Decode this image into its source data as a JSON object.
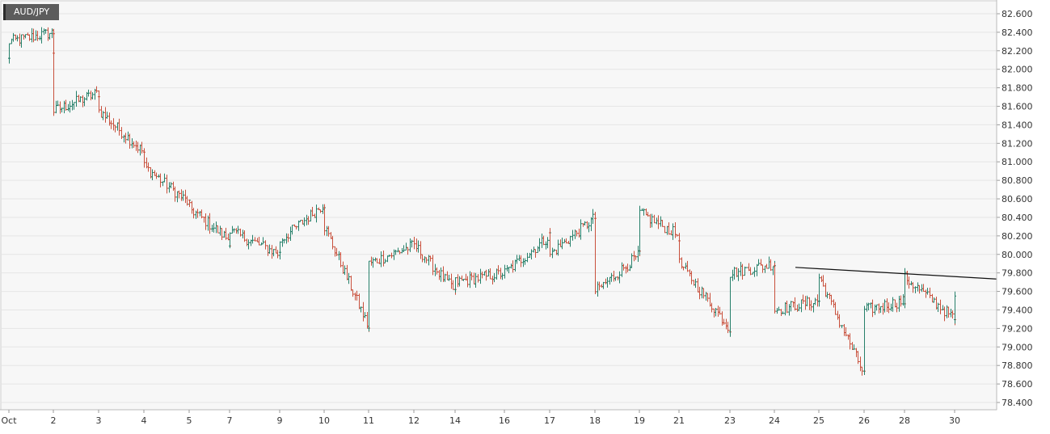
{
  "symbol": "AUD/JPY",
  "colors": {
    "up": "#26806a",
    "down": "#c8503c",
    "grid": "#e6e6e6",
    "plot_bg": "#f7f7f7",
    "axis_text": "#333333",
    "trendline": "#111111",
    "badge_bg": "#5c5c5c"
  },
  "chart_data": {
    "type": "candlestick",
    "title": "",
    "xlabel": "",
    "ylabel": "",
    "ylim": [
      78.3,
      82.7
    ],
    "y_ticks": [
      "82.600",
      "82.400",
      "82.200",
      "82.000",
      "81.800",
      "81.600",
      "81.400",
      "81.200",
      "81.000",
      "80.800",
      "80.600",
      "80.400",
      "80.200",
      "80.000",
      "79.800",
      "79.600",
      "79.400",
      "79.200",
      "79.000",
      "78.800",
      "78.600",
      "78.400"
    ],
    "x_ticks": [
      "Oct",
      "2",
      "3",
      "4",
      "5",
      "7",
      "9",
      "10",
      "11",
      "12",
      "14",
      "16",
      "17",
      "18",
      "19",
      "21",
      "23",
      "24",
      "25",
      "26",
      "28",
      "30"
    ],
    "grid": true,
    "price_path": [
      [
        "Oct",
        82.1
      ],
      [
        "Oct",
        82.3
      ],
      [
        "2",
        82.4
      ],
      [
        "2",
        82.2
      ],
      [
        "2",
        81.55
      ],
      [
        "3",
        81.75
      ],
      [
        "3",
        81.55
      ],
      [
        "4",
        81.1
      ],
      [
        "4",
        80.95
      ],
      [
        "5",
        80.55
      ],
      [
        "5",
        80.5
      ],
      [
        "7",
        80.15
      ],
      [
        "7",
        80.25
      ],
      [
        "9",
        80.0
      ],
      [
        "9",
        80.15
      ],
      [
        "10",
        80.55
      ],
      [
        "10",
        80.3
      ],
      [
        "11",
        79.2
      ],
      [
        "11",
        79.9
      ],
      [
        "12",
        80.1
      ],
      [
        "14",
        79.6
      ],
      [
        "14",
        79.7
      ],
      [
        "16",
        79.8
      ],
      [
        "17",
        80.2
      ],
      [
        "17",
        80.0
      ],
      [
        "18",
        80.4
      ],
      [
        "18",
        79.6
      ],
      [
        "19",
        80.0
      ],
      [
        "19",
        80.45
      ],
      [
        "21",
        80.2
      ],
      [
        "21",
        79.9
      ],
      [
        "23",
        79.2
      ],
      [
        "23",
        79.8
      ],
      [
        "24",
        79.9
      ],
      [
        "24",
        79.4
      ],
      [
        "25",
        79.5
      ],
      [
        "25",
        79.75
      ],
      [
        "26",
        78.7
      ],
      [
        "26",
        79.4
      ],
      [
        "28",
        79.5
      ],
      [
        "28",
        79.75
      ],
      [
        "30",
        79.3
      ],
      [
        "30",
        79.55
      ]
    ],
    "trendline": {
      "start": [
        "24",
        79.86
      ],
      "end": [
        "30",
        79.76
      ]
    }
  }
}
